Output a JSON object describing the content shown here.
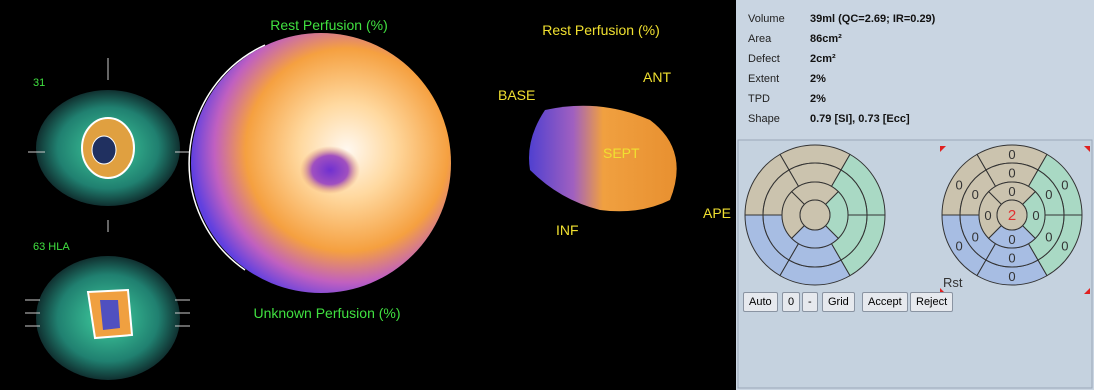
{
  "viewer": {
    "small_views": [
      {
        "label": "31"
      },
      {
        "label": "63 HLA"
      }
    ],
    "polar_top_label": "Rest Perfusion (%)",
    "polar_bottom_label": "Unknown Perfusion (%)",
    "surface": {
      "title": "Rest Perfusion (%)",
      "labels": [
        "BASE",
        "ANT",
        "SEPT",
        "INF",
        "APE"
      ]
    }
  },
  "stats": {
    "rows": [
      [
        "Volume",
        "39ml (QC=2.69; IR=0.29)"
      ],
      [
        "Area",
        "86cm²"
      ],
      [
        "Defect",
        "2cm²"
      ],
      [
        "Extent",
        "2%"
      ],
      [
        "TPD",
        "2%"
      ],
      [
        "Shape",
        "0.79 [SI],  0.73 [Ecc]"
      ]
    ]
  },
  "segment_map": {
    "values": [
      0,
      0,
      0,
      0,
      0,
      0,
      0,
      0,
      0,
      0,
      0,
      0,
      0,
      0,
      0,
      0,
      2
    ],
    "label": "Rst"
  },
  "buttons": [
    "Auto",
    "0",
    "-",
    "Grid",
    "Accept",
    "Reject"
  ]
}
